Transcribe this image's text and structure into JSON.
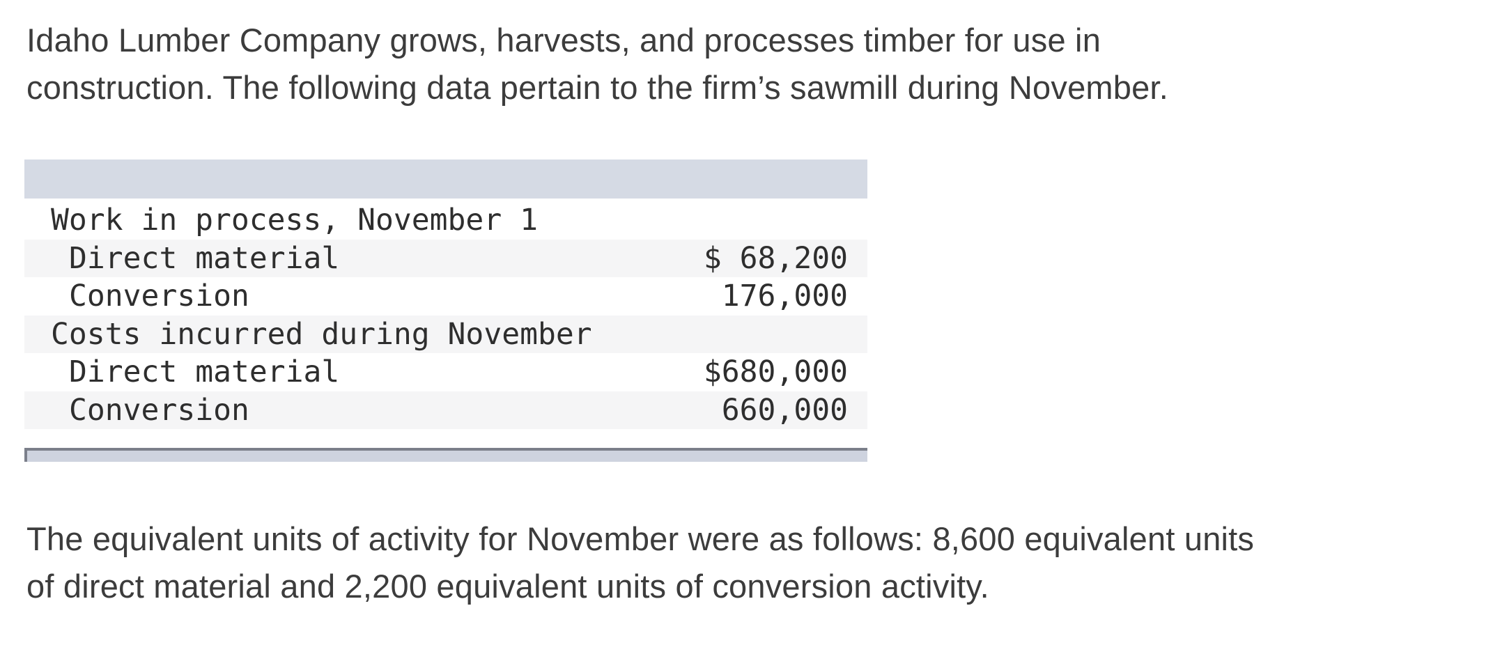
{
  "intro": {
    "lines": [
      "Idaho Lumber Company grows, harvests, and processes timber for use in",
      "construction. The following data pertain to the firm’s sawmill during November."
    ]
  },
  "cost_table": {
    "rows": [
      {
        "label": "Work in process, November 1",
        "value": "",
        "indent": 1
      },
      {
        "label": "Direct material",
        "value": "$ 68,200",
        "indent": 2
      },
      {
        "label": "Conversion",
        "value": "176,000",
        "indent": 2
      },
      {
        "label": "Costs incurred during November",
        "value": "",
        "indent": 1
      },
      {
        "label": "Direct material",
        "value": "$680,000",
        "indent": 2
      },
      {
        "label": "Conversion",
        "value": "660,000",
        "indent": 2
      }
    ]
  },
  "outro": {
    "lines": [
      "The equivalent units of activity for November were as follows: 8,600 equivalent units",
      "of direct material and 2,200 equivalent units of conversion activity."
    ]
  },
  "colors": {
    "header_band": "#d5dae4",
    "row_stripe": "#f5f5f6",
    "scrollbar_border": "#7b7f8a",
    "scrollbar_track": "#ced3df",
    "body_text": "#3c3c3c",
    "table_text": "#2e2e2e"
  }
}
